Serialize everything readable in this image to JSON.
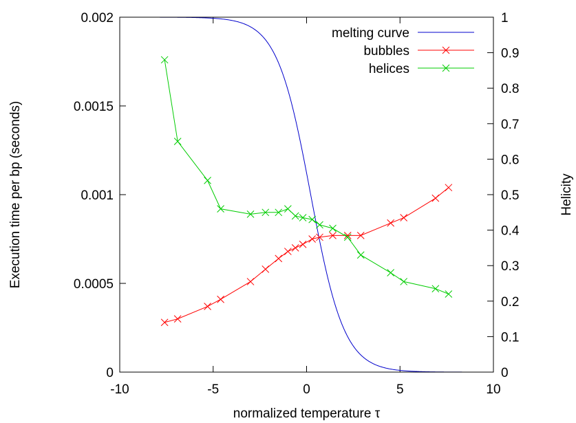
{
  "chart_data": {
    "type": "line",
    "xlabel": "normalized temperature τ",
    "ylabel": "Execution time per bp (seconds)",
    "y2label": "Helicity",
    "xlim": [
      -10,
      10
    ],
    "ylim": [
      0,
      0.002
    ],
    "y2lim": [
      0,
      1
    ],
    "xticks": [
      -10,
      -5,
      0,
      5,
      10
    ],
    "xtick_labels": [
      "-10",
      "-5",
      "0",
      "5",
      "10"
    ],
    "yticks": [
      0,
      0.0005,
      0.001,
      0.0015,
      0.002
    ],
    "ytick_labels": [
      "0",
      "0.0005",
      "0.001",
      "0.0015",
      "0.002"
    ],
    "y2ticks": [
      0,
      0.1,
      0.2,
      0.3,
      0.4,
      0.5,
      0.6,
      0.7,
      0.8,
      0.9,
      1
    ],
    "y2tick_labels": [
      "0",
      "0.1",
      "0.2",
      "0.3",
      "0.4",
      "0.5",
      "0.6",
      "0.7",
      "0.8",
      "0.9",
      "1"
    ],
    "grid": false,
    "legend_position": "top-right",
    "series": [
      {
        "name": "melting curve",
        "axis": "right",
        "color": "#0000cc",
        "marker": "none",
        "function": "logistic",
        "params": {
          "center": 0.22,
          "scale": 0.9,
          "top": 1.0
        }
      },
      {
        "name": "bubbles",
        "axis": "left",
        "color": "#ff0000",
        "marker": "x",
        "x": [
          -7.6,
          -6.9,
          -5.3,
          -4.6,
          -3.0,
          -2.2,
          -1.5,
          -1.0,
          -0.6,
          -0.2,
          0.3,
          0.7,
          1.4,
          2.2,
          2.9,
          4.5,
          5.2,
          6.9,
          7.6
        ],
        "y": [
          0.00028,
          0.0003,
          0.00037,
          0.00041,
          0.00051,
          0.00058,
          0.00064,
          0.00068,
          0.0007,
          0.00072,
          0.00075,
          0.00076,
          0.00077,
          0.00077,
          0.00077,
          0.00084,
          0.00087,
          0.00098,
          0.00104
        ]
      },
      {
        "name": "helices",
        "axis": "right",
        "color": "#00cc00",
        "marker": "x",
        "x": [
          -7.6,
          -6.9,
          -5.3,
          -4.6,
          -3.0,
          -2.2,
          -1.5,
          -1.0,
          -0.6,
          -0.2,
          0.3,
          0.7,
          1.4,
          2.2,
          2.9,
          4.5,
          5.2,
          6.9,
          7.6
        ],
        "y": [
          0.88,
          0.65,
          0.54,
          0.46,
          0.445,
          0.45,
          0.45,
          0.46,
          0.44,
          0.435,
          0.43,
          0.415,
          0.405,
          0.38,
          0.33,
          0.28,
          0.255,
          0.235,
          0.22
        ]
      }
    ]
  }
}
